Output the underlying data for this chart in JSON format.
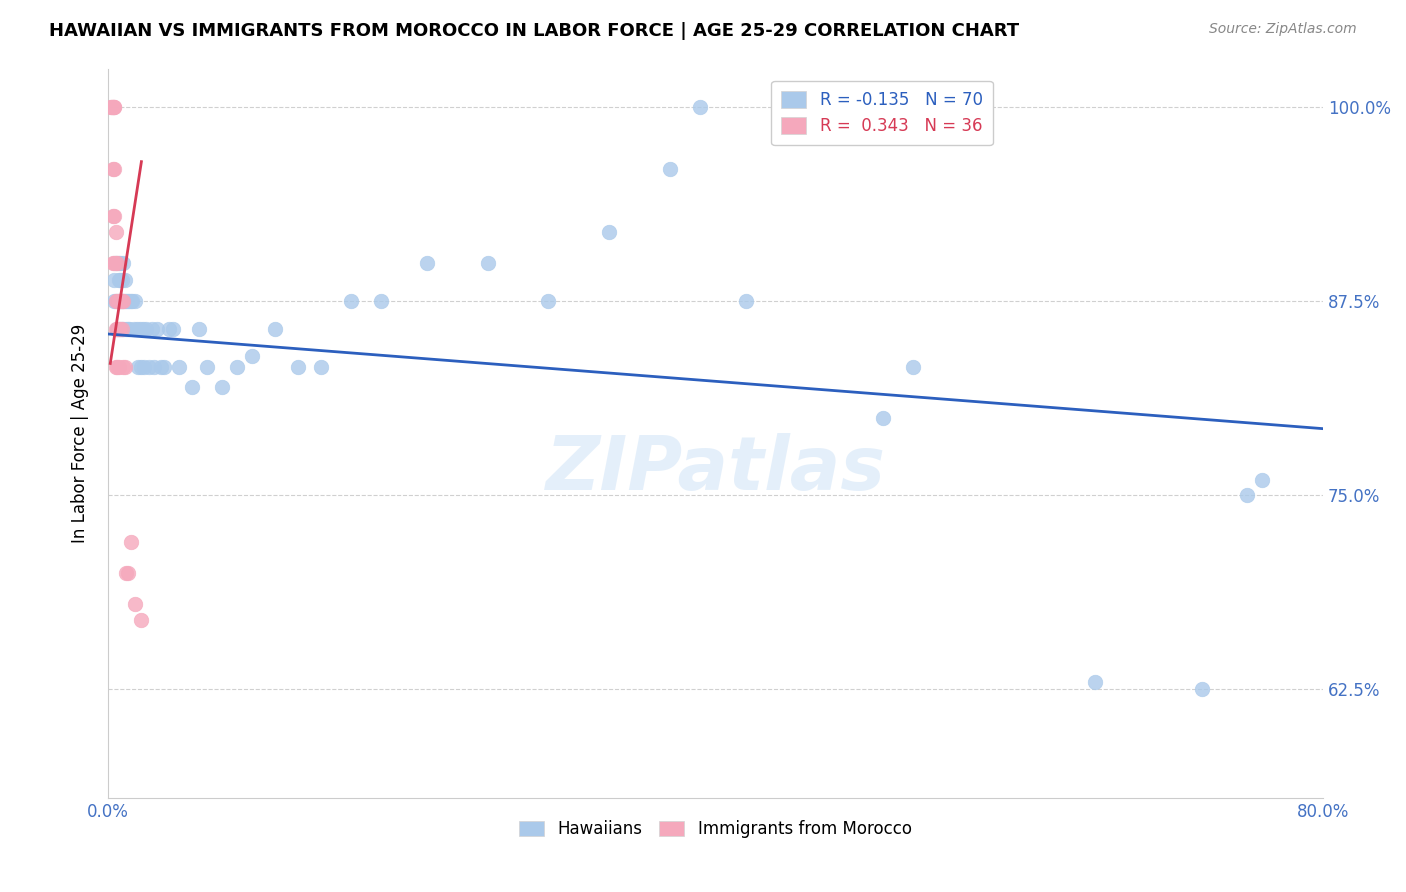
{
  "title": "HAWAIIAN VS IMMIGRANTS FROM MOROCCO IN LABOR FORCE | AGE 25-29 CORRELATION CHART",
  "source": "Source: ZipAtlas.com",
  "ylabel": "In Labor Force | Age 25-29",
  "x_min": 0.0,
  "x_max": 0.8,
  "y_min": 0.555,
  "y_max": 1.025,
  "y_ticks": [
    0.625,
    0.75,
    0.875,
    1.0
  ],
  "y_tick_labels": [
    "62.5%",
    "75.0%",
    "87.5%",
    "100.0%"
  ],
  "hawaiians_color": "#aac9ea",
  "morocco_color": "#f5a8bc",
  "hawaii_line_color": "#2c5fbe",
  "morocco_line_color": "#d63a55",
  "watermark": "ZIPatlas",
  "legend_hawaii_R": "-0.135",
  "legend_hawaii_N": "70",
  "legend_morocco_R": "0.343",
  "legend_morocco_N": "36",
  "hawaii_scatter_x": [
    0.004,
    0.004,
    0.005,
    0.005,
    0.006,
    0.007,
    0.007,
    0.007,
    0.007,
    0.008,
    0.008,
    0.008,
    0.009,
    0.009,
    0.009,
    0.01,
    0.01,
    0.01,
    0.011,
    0.011,
    0.012,
    0.012,
    0.013,
    0.013,
    0.014,
    0.014,
    0.015,
    0.016,
    0.017,
    0.018,
    0.019,
    0.02,
    0.021,
    0.022,
    0.023,
    0.024,
    0.025,
    0.027,
    0.029,
    0.03,
    0.032,
    0.035,
    0.037,
    0.04,
    0.043,
    0.047,
    0.055,
    0.06,
    0.065,
    0.075,
    0.085,
    0.095,
    0.11,
    0.125,
    0.14,
    0.16,
    0.18,
    0.21,
    0.25,
    0.29,
    0.33,
    0.37,
    0.39,
    0.42,
    0.51,
    0.53,
    0.65,
    0.72,
    0.75,
    0.76
  ],
  "hawaii_scatter_y": [
    0.875,
    0.889,
    0.875,
    0.9,
    0.857,
    0.9,
    0.889,
    0.875,
    0.857,
    0.9,
    0.889,
    0.875,
    0.889,
    0.875,
    0.857,
    0.9,
    0.875,
    0.857,
    0.889,
    0.875,
    0.875,
    0.857,
    0.875,
    0.857,
    0.875,
    0.857,
    0.875,
    0.875,
    0.857,
    0.875,
    0.857,
    0.833,
    0.857,
    0.833,
    0.857,
    0.833,
    0.857,
    0.833,
    0.857,
    0.833,
    0.857,
    0.833,
    0.833,
    0.857,
    0.857,
    0.833,
    0.82,
    0.857,
    0.833,
    0.82,
    0.833,
    0.84,
    0.857,
    0.833,
    0.833,
    0.875,
    0.875,
    0.9,
    0.9,
    0.875,
    0.92,
    0.96,
    1.0,
    0.875,
    0.8,
    0.833,
    0.63,
    0.625,
    0.75,
    0.76
  ],
  "morocco_scatter_x": [
    0.002,
    0.002,
    0.003,
    0.003,
    0.003,
    0.003,
    0.003,
    0.004,
    0.004,
    0.004,
    0.004,
    0.004,
    0.005,
    0.005,
    0.005,
    0.005,
    0.005,
    0.006,
    0.006,
    0.006,
    0.006,
    0.007,
    0.007,
    0.007,
    0.008,
    0.008,
    0.009,
    0.009,
    0.01,
    0.01,
    0.011,
    0.012,
    0.013,
    0.015,
    0.018,
    0.022
  ],
  "morocco_scatter_y": [
    1.0,
    1.0,
    1.0,
    1.0,
    0.96,
    0.93,
    0.9,
    1.0,
    1.0,
    0.96,
    0.93,
    0.9,
    0.92,
    0.9,
    0.875,
    0.857,
    0.833,
    0.9,
    0.875,
    0.857,
    0.833,
    0.875,
    0.857,
    0.833,
    0.875,
    0.857,
    0.875,
    0.857,
    0.875,
    0.833,
    0.833,
    0.7,
    0.7,
    0.72,
    0.68,
    0.67
  ],
  "hawaii_trendline_x": [
    0.0,
    0.8
  ],
  "hawaii_trendline_y": [
    0.854,
    0.793
  ],
  "morocco_trendline_x": [
    0.0015,
    0.022
  ],
  "morocco_trendline_y": [
    0.835,
    0.965
  ]
}
